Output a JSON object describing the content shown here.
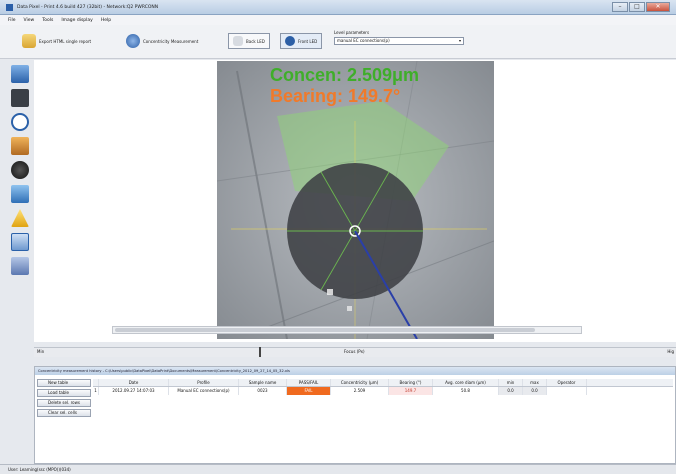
{
  "window": {
    "title": "Data Pixel - Print 4.6 build 427 (32bit) - Network:Q2 PWRCONN"
  },
  "menu": [
    "File",
    "View",
    "Tools",
    "Image display",
    "Help"
  ],
  "toolbar": {
    "export_label": "Export HTML single report",
    "concentricity_label": "Concentricity Measurement",
    "back_led_label": "Back LED",
    "front_led_label": "Front LED",
    "level_label": "Level parameters",
    "manual_select_value": "manual EC connections(p)"
  },
  "overlay": {
    "concen_text": "Concen: 2.509μm",
    "bearing_text": "Bearing: 149.7°"
  },
  "colors": {
    "concen": "#3fae2a",
    "bearing": "#f07a2a",
    "vector": "#2a3fa8"
  },
  "slider": {
    "left_label": "Min",
    "center_label": "Focus (Px)",
    "right_label": "Hig"
  },
  "panel": {
    "title": "Concentricity measurement history - C:\\Users\\public\\DataPixel\\DataPrint\\Documents\\Measurement\\Concentricity_2012_09_27_14_05_32.xls",
    "buttons": [
      "New table",
      "Load table",
      "Delete sel. rows",
      "Clear sel. cells"
    ],
    "columns": [
      "",
      "Date",
      "Profile",
      "Sample name",
      "PASS/FAIL",
      "Concentricity (μm)",
      "Bearing (°)",
      "Avg. core diam (μm)",
      "min",
      "max",
      "Operator"
    ],
    "rows": [
      [
        "1",
        "2012.09.27 14:07:03",
        "Manual EC connections(p)",
        "0023",
        "FAIL",
        "2.509",
        "149.7",
        "50.8",
        "0.0",
        "0.0",
        ""
      ]
    ]
  },
  "statusbar": {
    "text": "User: Learning(ssc (MPO))(034)"
  }
}
